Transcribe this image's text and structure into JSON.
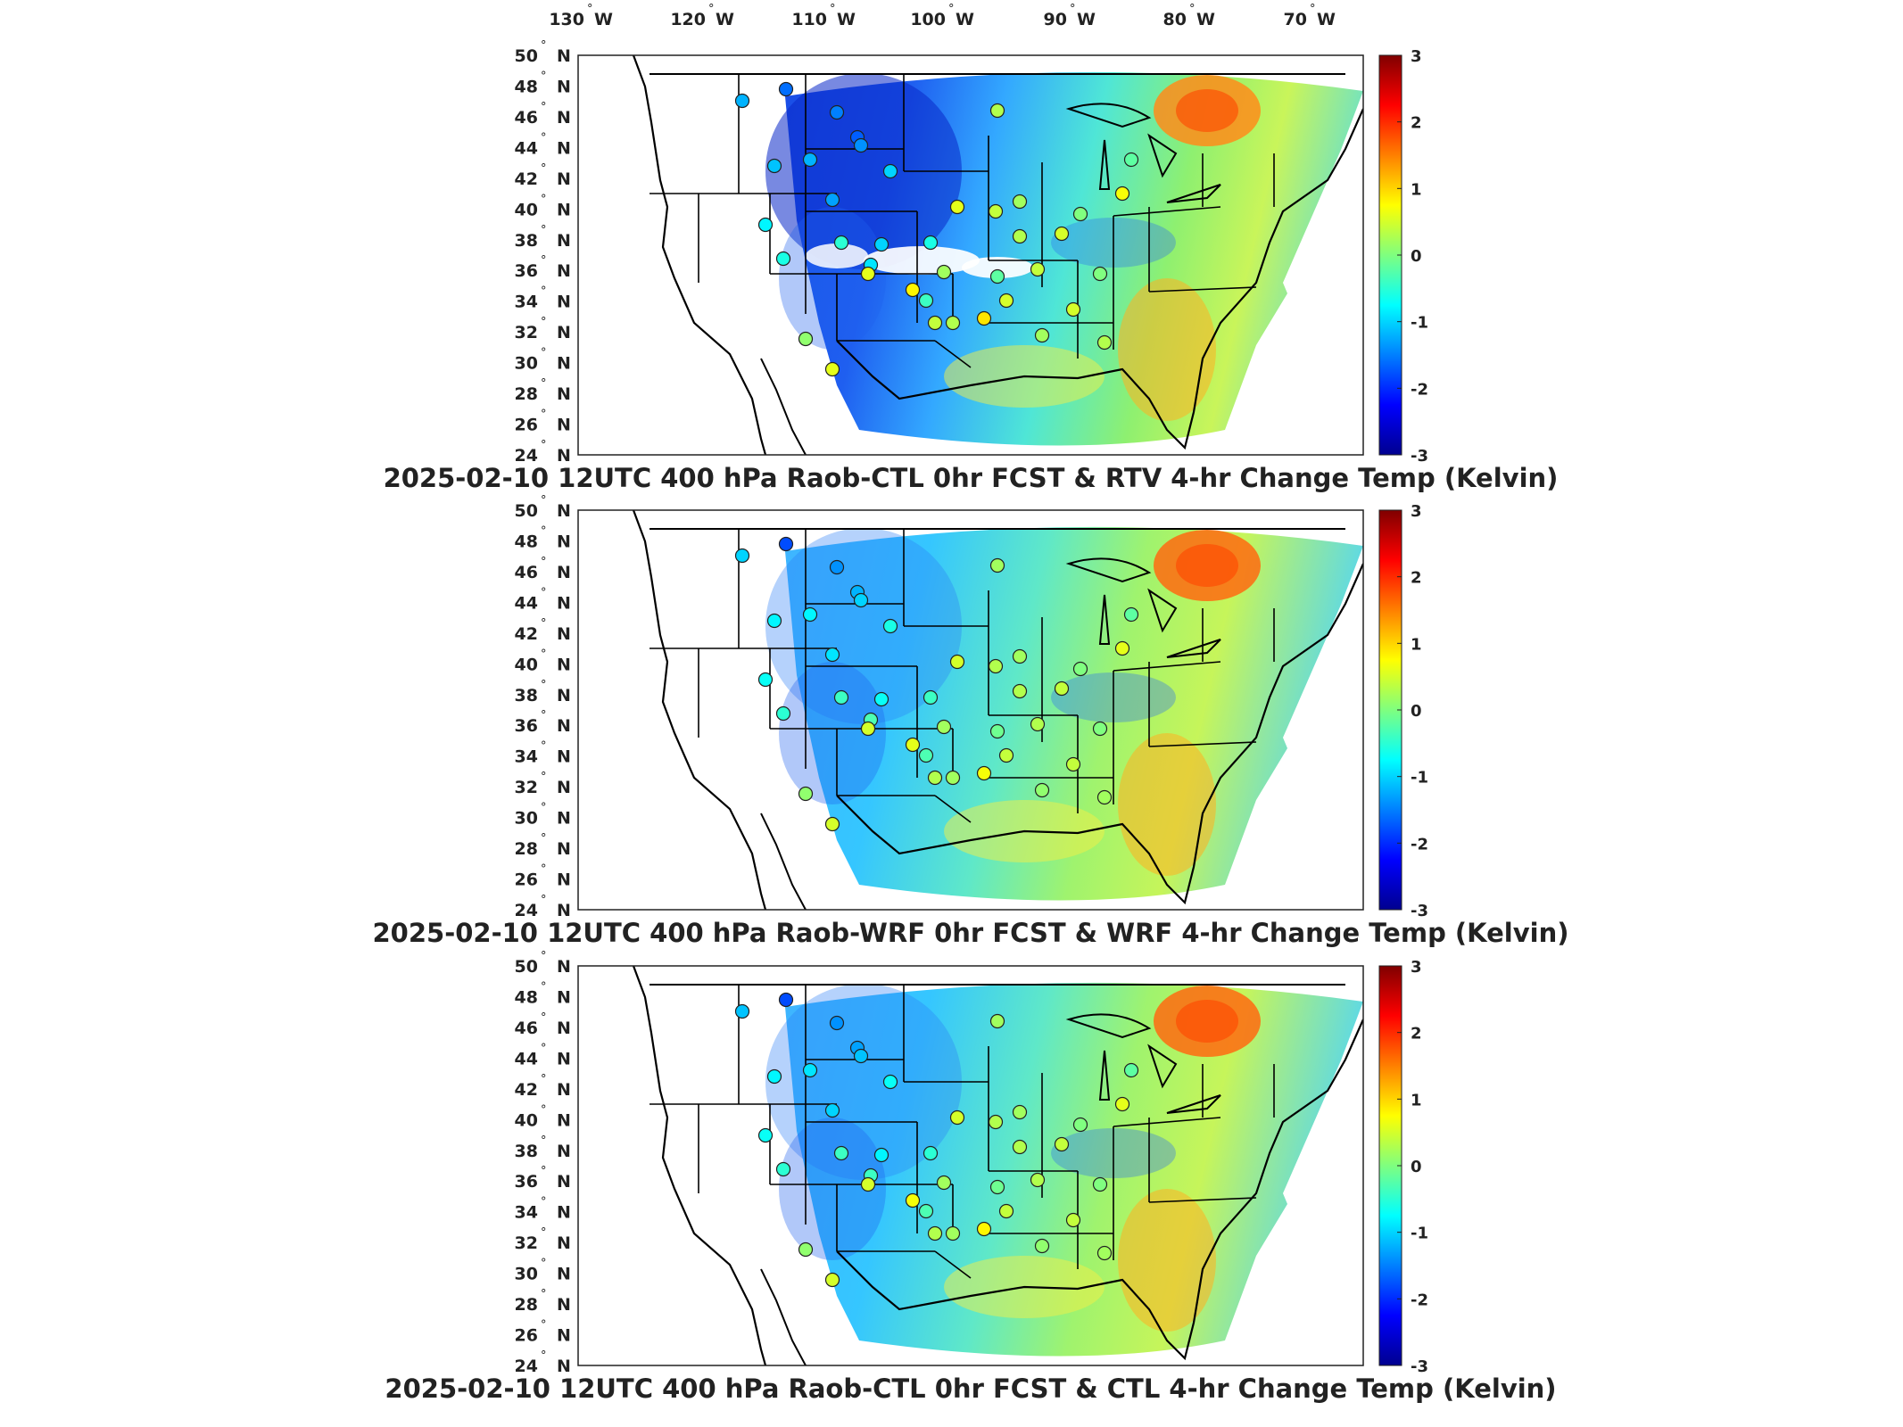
{
  "figure": {
    "top_lon_labels": [
      "130",
      "120",
      "110",
      "100",
      "90",
      "80",
      "70"
    ],
    "lon_hemisphere": "W",
    "lat_labels": [
      "50",
      "48",
      "46",
      "44",
      "42",
      "40",
      "38",
      "36",
      "34",
      "32",
      "30",
      "28",
      "26",
      "24"
    ],
    "lat_hemisphere": "N",
    "degree_symbol": "°",
    "colorbar": {
      "min": -3,
      "max": 3,
      "ticks": [
        "3",
        "2",
        "1",
        "0",
        "-1",
        "-2",
        "-3"
      ],
      "colormap": "jet"
    }
  },
  "panels": [
    {
      "title": "2025-02-10 12UTC 400 hPa Raob-CTL 0hr FCST & RTV 4-hr Change Temp (Kelvin)"
    },
    {
      "title": "2025-02-10 12UTC 400 hPa Raob-WRF 0hr FCST & WRF 4-hr Change Temp (Kelvin)"
    },
    {
      "title": "2025-02-10 12UTC 400 hPa Raob-CTL 0hr FCST & CTL 4-hr Change Temp (Kelvin)"
    }
  ],
  "chart_data": {
    "type": "heatmap",
    "units": "Kelvin",
    "color_scale": [
      -3,
      3
    ],
    "lon_range_deg_w": [
      130,
      65
    ],
    "lat_range_deg_n": [
      24,
      50
    ],
    "raob_station_values": [
      [
        -1.2,
        -1.6,
        -1.5,
        -1.7,
        -1.2,
        -1.4,
        -1.0,
        -1.1,
        -1.3,
        -0.8,
        -0.6,
        -1.0,
        -0.5,
        -0.9,
        -0.6,
        0.2,
        0.8,
        0.6,
        0.3,
        -0.4,
        0.5,
        0.1,
        0.6,
        0.4,
        0.9,
        0.3,
        0.2,
        0.5,
        0.3,
        0.0,
        -0.2,
        0.7,
        0.2,
        0.4,
        0.6,
        0.0,
        0.4,
        -0.2,
        0.5,
        0.3
      ],
      [
        -1.0,
        -1.8,
        -1.4,
        -1.2,
        -0.8,
        -1.0,
        -0.6,
        -0.8,
        -0.9,
        -0.7,
        -0.5,
        -0.7,
        -0.4,
        -0.3,
        -0.4,
        0.2,
        0.6,
        0.5,
        0.2,
        -0.3,
        0.4,
        0.1,
        0.5,
        0.3,
        0.7,
        0.2,
        0.1,
        0.4,
        0.3,
        0.0,
        -0.2,
        0.6,
        0.2,
        0.3,
        0.5,
        0.0,
        0.3,
        -0.1,
        0.4,
        0.2
      ],
      [
        -1.1,
        -1.8,
        -1.4,
        -1.3,
        -0.9,
        -1.1,
        -0.7,
        -0.8,
        -1.0,
        -0.7,
        -0.5,
        -0.8,
        -0.4,
        -0.4,
        -0.5,
        0.2,
        0.7,
        0.5,
        0.2,
        -0.3,
        0.4,
        0.1,
        0.5,
        0.3,
        0.8,
        0.2,
        0.1,
        0.4,
        0.3,
        0.0,
        -0.2,
        0.6,
        0.2,
        0.3,
        0.5,
        0.0,
        0.3,
        -0.1,
        0.4,
        0.2
      ]
    ]
  }
}
